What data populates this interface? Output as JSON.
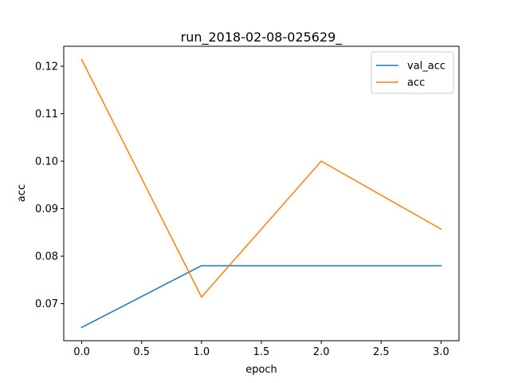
{
  "chart_data": {
    "type": "line",
    "title": "run_2018-02-08-025629_",
    "xlabel": "epoch",
    "ylabel": "acc",
    "x": [
      0,
      1,
      2,
      3
    ],
    "xlim": [
      -0.15,
      3.15
    ],
    "ylim": [
      0.0622,
      0.1242
    ],
    "xticks": [
      0.0,
      0.5,
      1.0,
      1.5,
      2.0,
      2.5,
      3.0
    ],
    "xtick_labels": [
      "0.0",
      "0.5",
      "1.0",
      "1.5",
      "2.0",
      "2.5",
      "3.0"
    ],
    "yticks": [
      0.07,
      0.08,
      0.09,
      0.1,
      0.11,
      0.12
    ],
    "ytick_labels": [
      "0.07",
      "0.08",
      "0.09",
      "0.10",
      "0.11",
      "0.12"
    ],
    "grid": false,
    "legend_position": "top-right",
    "series": [
      {
        "name": "val_acc",
        "color": "#1f77b4",
        "values": [
          0.065,
          0.078,
          0.078,
          0.078
        ]
      },
      {
        "name": "acc",
        "color": "#ff7f0e",
        "values": [
          0.1214,
          0.0714,
          0.1,
          0.0857
        ]
      }
    ]
  }
}
